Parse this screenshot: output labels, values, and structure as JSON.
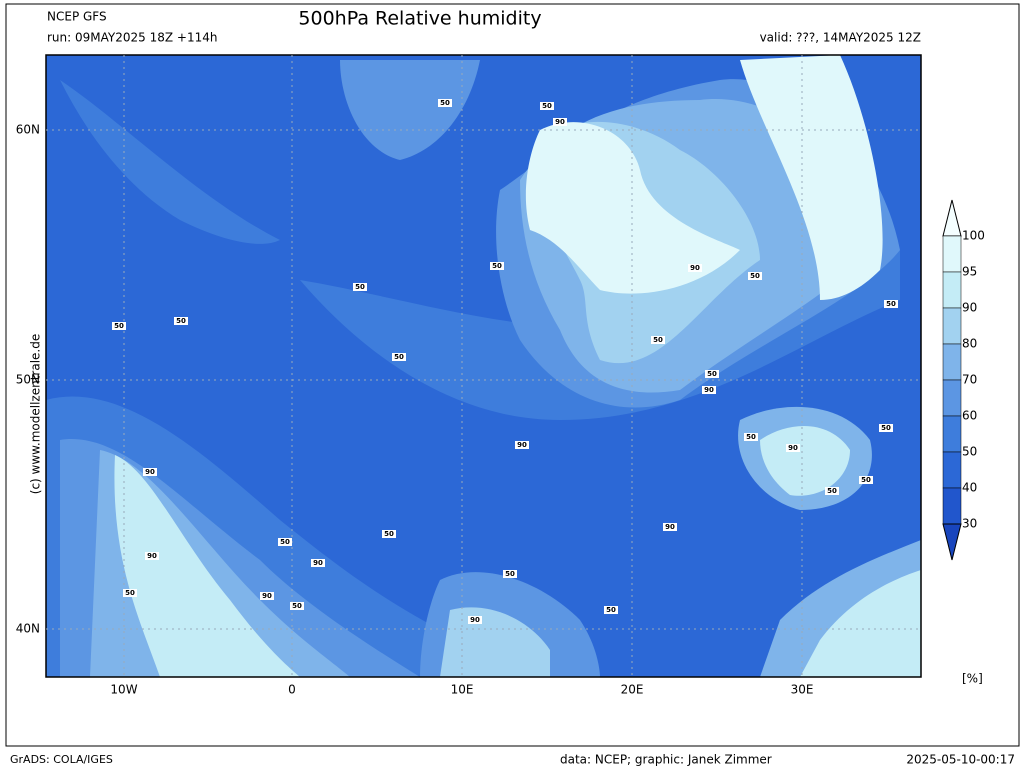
{
  "header": {
    "model": "NCEP GFS",
    "run": "run: 09MAY2025 18Z +114h",
    "title": "500hPa Relative humidity",
    "valid": "valid: ???, 14MAY2025 12Z"
  },
  "axes": {
    "lon_labels": [
      "10W",
      "0",
      "10E",
      "20E",
      "30E"
    ],
    "lat_labels": [
      "60N",
      "50N",
      "40N"
    ]
  },
  "legend": {
    "levels": [
      100,
      95,
      90,
      80,
      70,
      60,
      50,
      40,
      30
    ],
    "unit": "[%]",
    "colors": [
      "#f4feff",
      "#e0f8fb",
      "#c4ecf6",
      "#a2d2f0",
      "#7fb4ea",
      "#5c96e3",
      "#3e7ddc",
      "#2c68d6",
      "#2156cc",
      "#1845bd"
    ]
  },
  "contour_labels": [
    "50",
    "50",
    "90",
    "50",
    "50",
    "50",
    "50",
    "50",
    "90",
    "50",
    "90",
    "50",
    "50",
    "50",
    "90",
    "50",
    "50",
    "90",
    "50",
    "50",
    "50",
    "90",
    "90",
    "90",
    "50",
    "50",
    "50",
    "90",
    "90",
    "50",
    "50",
    "90"
  ],
  "credit": "(c) www.modellzentrale.de",
  "footer": {
    "left": "GrADS: COLA/IGES",
    "center": "data: NCEP; graphic: Janek Zimmer",
    "right": "2025-05-10-00:17"
  }
}
